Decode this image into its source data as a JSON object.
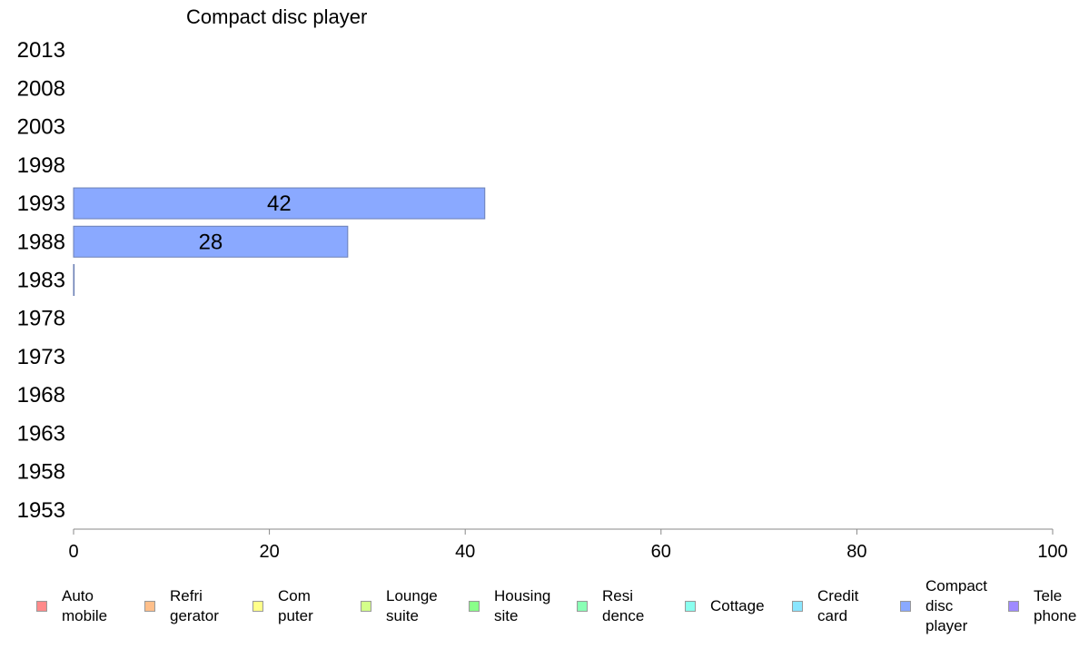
{
  "chart_data": {
    "type": "bar",
    "orientation": "horizontal",
    "title": "Compact disc player",
    "categories": [
      "2013",
      "2008",
      "2003",
      "1998",
      "1993",
      "1988",
      "1983",
      "1978",
      "1973",
      "1968",
      "1963",
      "1958",
      "1953"
    ],
    "series": [
      {
        "name": "Compact\ndisc\nplayer",
        "color": "#8aa9ff",
        "values": [
          null,
          null,
          null,
          null,
          42,
          28,
          0,
          null,
          null,
          null,
          null,
          null,
          null
        ],
        "data_labels": [
          "",
          "",
          "",
          "",
          "42",
          "28",
          "",
          "",
          "",
          "",
          "",
          "",
          ""
        ]
      }
    ],
    "xlim": [
      0,
      100
    ],
    "xticks": [
      "0",
      "20",
      "40",
      "60",
      "80",
      "100"
    ],
    "grid": false,
    "legend_position": "bottom"
  },
  "legend": [
    {
      "label": "Auto\nmobile",
      "color": "#ff8a8a"
    },
    {
      "label": "Refri\ngerator",
      "color": "#ffbf8a"
    },
    {
      "label": "Com\nputer",
      "color": "#ffff8a"
    },
    {
      "label": "Lounge\nsuite",
      "color": "#d4ff8a"
    },
    {
      "label": "Housing\nsite",
      "color": "#8aff8a"
    },
    {
      "label": "Resi\ndence",
      "color": "#8affb5"
    },
    {
      "label": "Cottage",
      "color": "#8affef"
    },
    {
      "label": "Credit\ncard",
      "color": "#8ae6ff"
    },
    {
      "label": "Compact\ndisc\nplayer",
      "color": "#8aa9ff"
    },
    {
      "label": "Tele\nphone",
      "color": "#9f8aff"
    }
  ]
}
